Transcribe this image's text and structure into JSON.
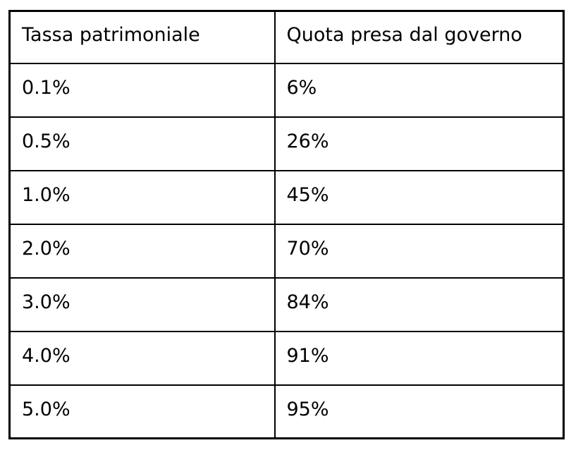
{
  "chart_data": {
    "type": "table",
    "title": "",
    "columns": [
      "Tassa patrimoniale",
      "Quota presa dal governo"
    ],
    "rows": [
      [
        "0.1%",
        "6%"
      ],
      [
        "0.5%",
        "26%"
      ],
      [
        "1.0%",
        "45%"
      ],
      [
        "2.0%",
        "70%"
      ],
      [
        "3.0%",
        "84%"
      ],
      [
        "4.0%",
        "91%"
      ],
      [
        "5.0%",
        "95%"
      ]
    ]
  },
  "colors": {
    "border": "#000000",
    "text": "#000000",
    "background": "#ffffff"
  }
}
